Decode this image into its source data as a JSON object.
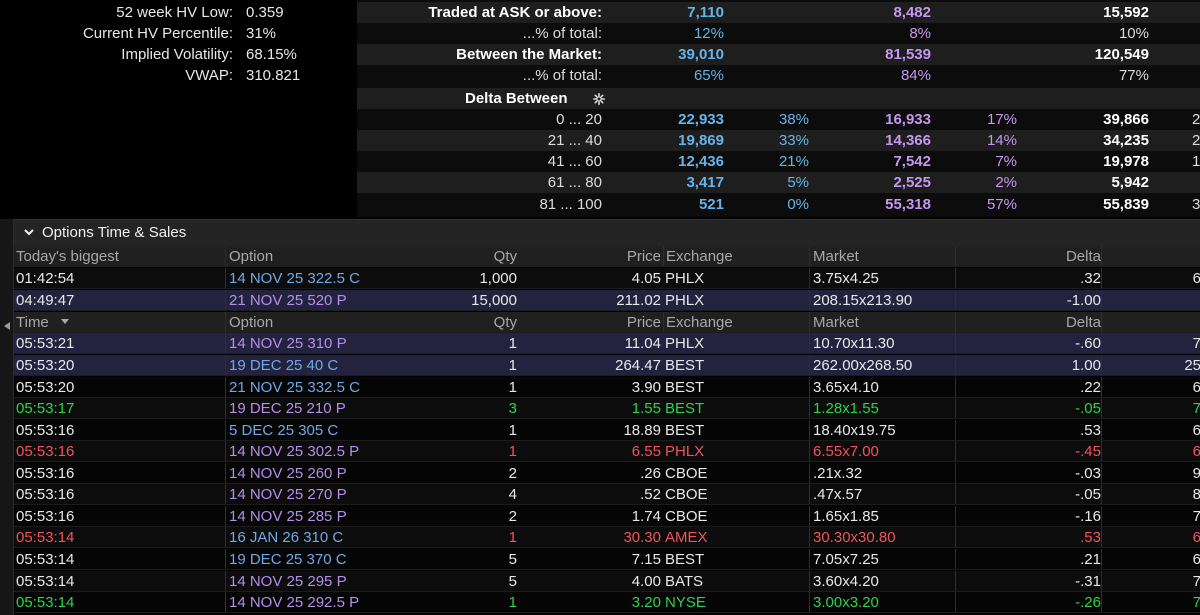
{
  "stats": [
    {
      "label": "52 week HV Low:",
      "value": "0.359"
    },
    {
      "label": "Current HV Percentile:",
      "value": "31%"
    },
    {
      "label": "Implied Volatility:",
      "value": "68.15%"
    },
    {
      "label": "VWAP:",
      "value": "310.821"
    }
  ],
  "summary": {
    "ask_row": {
      "label": "Traded at ASK or above:",
      "a": "7,110",
      "b": "8,482",
      "t": "15,592"
    },
    "ask_pct": {
      "label": "...% of total:",
      "a": "12%",
      "b": "8%",
      "t": "10%"
    },
    "between_row": {
      "label": "Between the Market:",
      "a": "39,010",
      "b": "81,539",
      "t": "120,549"
    },
    "between_pct": {
      "label": "...% of total:",
      "a": "65%",
      "b": "84%",
      "t": "77%"
    },
    "delta_header": "Delta Between",
    "delta_rows": [
      {
        "range": "0 ... 20",
        "a": "22,933",
        "apct": "38%",
        "b": "16,933",
        "bpct": "17%",
        "t": "39,866",
        "extra": "2"
      },
      {
        "range": "21 ... 40",
        "a": "19,869",
        "apct": "33%",
        "b": "14,366",
        "bpct": "14%",
        "t": "34,235",
        "extra": "2"
      },
      {
        "range": "41 ... 60",
        "a": "12,436",
        "apct": "21%",
        "b": "7,542",
        "bpct": "7%",
        "t": "19,978",
        "extra": "1"
      },
      {
        "range": "61 ... 80",
        "a": "3,417",
        "apct": "5%",
        "b": "2,525",
        "bpct": "2%",
        "t": "5,942",
        "extra": ""
      },
      {
        "range": "81 ... 100",
        "a": "521",
        "apct": "0%",
        "b": "55,318",
        "bpct": "57%",
        "t": "55,839",
        "extra": "3"
      }
    ]
  },
  "tns": {
    "title": "Options Time & Sales",
    "biggest_headers": {
      "time": "Today's biggest",
      "option": "Option",
      "qty": "Qty",
      "price": "Price",
      "exchange": "Exchange",
      "market": "Market",
      "delta": "Delta"
    },
    "biggest_rows": [
      {
        "time": "01:42:54",
        "option": "14 NOV 25 322.5 C",
        "qty": "1,000",
        "price": "4.05",
        "exchange": "PHLX",
        "market": "3.75x4.25",
        "delta": ".32",
        "extra": "6"
      },
      {
        "time": "04:49:47",
        "option": "21 NOV 25 520 P",
        "qty": "15,000",
        "price": "211.02",
        "exchange": "PHLX",
        "market": "208.15x213.90",
        "delta": "-1.00",
        "extra": ""
      }
    ],
    "headers": {
      "time": "Time",
      "option": "Option",
      "qty": "Qty",
      "price": "Price",
      "exchange": "Exchange",
      "market": "Market",
      "delta": "Delta"
    },
    "rows": [
      {
        "time": "05:53:21",
        "option": "14 NOV 25 310 P",
        "qty": "1",
        "price": "11.04",
        "exchange": "PHLX",
        "market": "10.70x11.30",
        "delta": "-.60",
        "extra": "7"
      },
      {
        "time": "05:53:20",
        "option": "19 DEC 25 40 C",
        "qty": "1",
        "price": "264.47",
        "exchange": "BEST",
        "market": "262.00x268.50",
        "delta": "1.00",
        "extra": "25"
      },
      {
        "time": "05:53:20",
        "option": "21 NOV 25 332.5 C",
        "qty": "1",
        "price": "3.90",
        "exchange": "BEST",
        "market": "3.65x4.10",
        "delta": ".22",
        "extra": "6"
      },
      {
        "time": "05:53:17",
        "option": "19 DEC 25 210 P",
        "qty": "3",
        "price": "1.55",
        "exchange": "BEST",
        "market": "1.28x1.55",
        "delta": "-.05",
        "extra": "7"
      },
      {
        "time": "05:53:16",
        "option": "5 DEC 25 305 C",
        "qty": "1",
        "price": "18.89",
        "exchange": "BEST",
        "market": "18.40x19.75",
        "delta": ".53",
        "extra": "6"
      },
      {
        "time": "05:53:16",
        "option": "14 NOV 25 302.5 P",
        "qty": "1",
        "price": "6.55",
        "exchange": "PHLX",
        "market": "6.55x7.00",
        "delta": "-.45",
        "extra": "6"
      },
      {
        "time": "05:53:16",
        "option": "14 NOV 25 260 P",
        "qty": "2",
        "price": ".26",
        "exchange": "CBOE",
        "market": ".21x.32",
        "delta": "-.03",
        "extra": "9"
      },
      {
        "time": "05:53:16",
        "option": "14 NOV 25 270 P",
        "qty": "4",
        "price": ".52",
        "exchange": "CBOE",
        "market": ".47x.57",
        "delta": "-.05",
        "extra": "8"
      },
      {
        "time": "05:53:16",
        "option": "14 NOV 25 285 P",
        "qty": "2",
        "price": "1.74",
        "exchange": "CBOE",
        "market": "1.65x1.85",
        "delta": "-.16",
        "extra": "7"
      },
      {
        "time": "05:53:14",
        "option": "16 JAN 26 310 C",
        "qty": "1",
        "price": "30.30",
        "exchange": "AMEX",
        "market": "30.30x30.80",
        "delta": ".53",
        "extra": "6"
      },
      {
        "time": "05:53:14",
        "option": "19 DEC 25 370 C",
        "qty": "5",
        "price": "7.15",
        "exchange": "BEST",
        "market": "7.05x7.25",
        "delta": ".21",
        "extra": "6"
      },
      {
        "time": "05:53:14",
        "option": "14 NOV 25 295 P",
        "qty": "5",
        "price": "4.00",
        "exchange": "BATS",
        "market": "3.60x4.20",
        "delta": "-.31",
        "extra": "7"
      },
      {
        "time": "05:53:14",
        "option": "14 NOV 25 292.5 P",
        "qty": "1",
        "price": "3.20",
        "exchange": "NYSE",
        "market": "3.00x3.20",
        "delta": "-.26",
        "extra": "7"
      }
    ]
  },
  "colors": {
    "ask_blue": "#64b4ec",
    "bid_purple": "#c497f0",
    "buy_green": "#2fd34a",
    "sell_red": "#f0545a",
    "highlight_row": "#23233f"
  }
}
